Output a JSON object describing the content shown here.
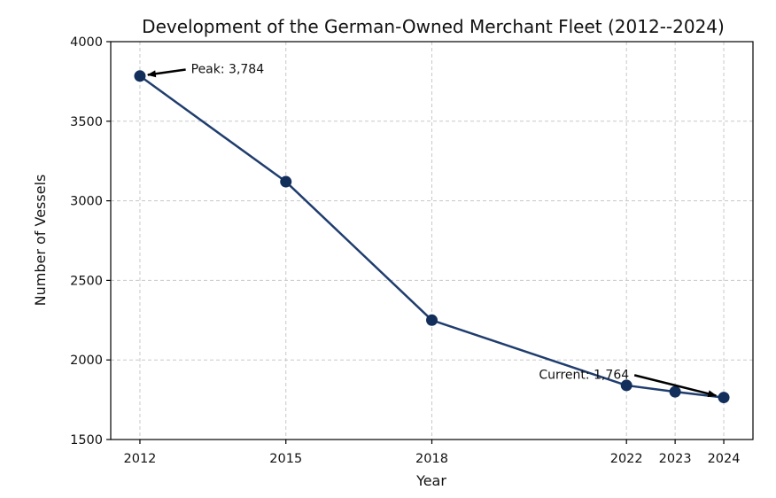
{
  "chart_data": {
    "type": "line",
    "title": "Development of the German-Owned Merchant Fleet (2012--2024)",
    "xlabel": "Year",
    "ylabel": "Number of Vessels",
    "x": [
      2012,
      2015,
      2018,
      2022,
      2023,
      2024
    ],
    "xtick_labels": [
      "2012",
      "2015",
      "2018",
      "2022",
      "2023",
      "2024"
    ],
    "xlim": [
      2011.4,
      2024.6
    ],
    "ylim": [
      1500,
      4000
    ],
    "yticks": [
      1500,
      2000,
      2500,
      3000,
      3500,
      4000
    ],
    "ytick_labels": [
      "1500",
      "2000",
      "2500",
      "3000",
      "3500",
      "4000"
    ],
    "series": [
      {
        "values": [
          3784,
          3120,
          2250,
          1840,
          1800,
          1764
        ],
        "color": "#1f3d6e",
        "marker_color": "#122f5c"
      }
    ],
    "grid": true,
    "annotations": [
      {
        "text": "Peak: 3,784",
        "point": [
          2012,
          3784
        ],
        "text_at": [
          2013.05,
          3830
        ]
      },
      {
        "text": "Current: 1,764",
        "point": [
          2024,
          1764
        ],
        "text_at": [
          2020.2,
          1910
        ]
      }
    ]
  }
}
